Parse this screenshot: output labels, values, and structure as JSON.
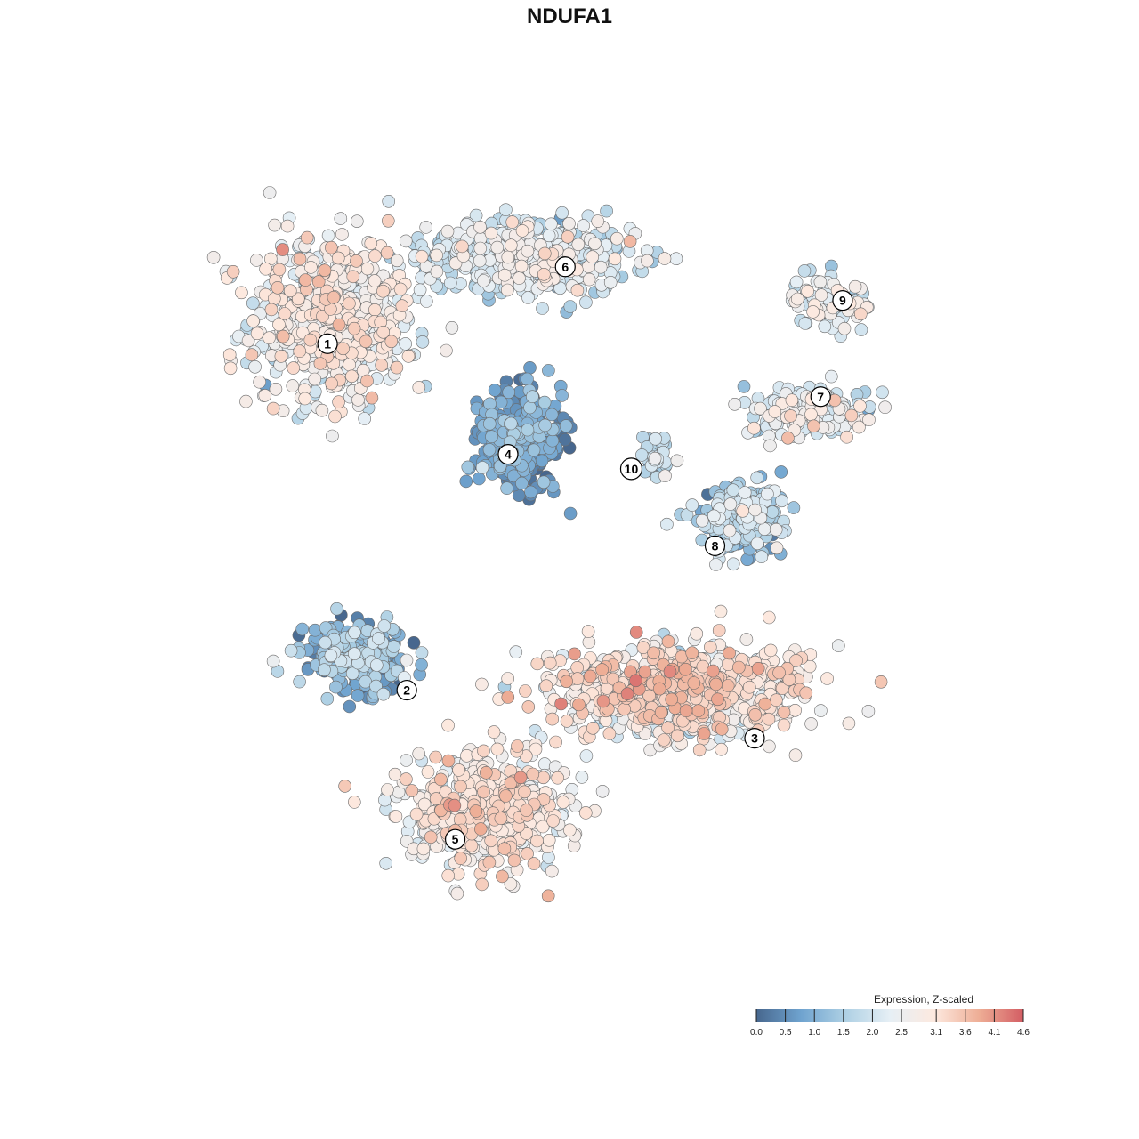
{
  "chart_data": {
    "type": "scatter",
    "title": "NDUFA1",
    "xlabel": "",
    "ylabel": "",
    "grid": false,
    "legend_placement": "bottom-right",
    "colorbar": {
      "title": "Expression, Z-scaled",
      "range": [
        0.0,
        4.6
      ],
      "ticks": [
        "0.0",
        "0.5",
        "1.0",
        "1.5",
        "2.0",
        "2.5",
        "3.1",
        "3.6",
        "4.1",
        "4.6"
      ],
      "tick_values": [
        0.0,
        0.5,
        1.0,
        1.5,
        2.0,
        2.5,
        3.1,
        3.6,
        4.1,
        4.6
      ],
      "colors": [
        "#47678e",
        "#6fa3cf",
        "#aed0e4",
        "#e6eff5",
        "#fde9df",
        "#eeae96",
        "#d35d63"
      ]
    },
    "clusters": [
      {
        "label": "1",
        "x": -5.8,
        "y": 5.5,
        "spread": [
          1.7,
          1.6
        ],
        "n": 620,
        "mean_expr": 2.6,
        "sd_expr": 0.45
      },
      {
        "label": "6",
        "x": -1.3,
        "y": 6.8,
        "spread": [
          2.1,
          0.7
        ],
        "n": 520,
        "mean_expr": 2.1,
        "sd_expr": 0.5
      },
      {
        "label": "9",
        "x": 5.5,
        "y": 5.9,
        "spread": [
          0.9,
          0.45
        ],
        "n": 90,
        "mean_expr": 2.2,
        "sd_expr": 0.5
      },
      {
        "label": "7",
        "x": 5.0,
        "y": 3.6,
        "spread": [
          1.3,
          0.5
        ],
        "n": 190,
        "mean_expr": 2.2,
        "sd_expr": 0.5
      },
      {
        "label": "4",
        "x": -1.5,
        "y": 3.0,
        "spread": [
          0.85,
          0.9
        ],
        "n": 430,
        "mean_expr": 0.6,
        "sd_expr": 0.4
      },
      {
        "label": "10",
        "x": 1.6,
        "y": 2.6,
        "spread": [
          0.3,
          0.35
        ],
        "n": 45,
        "mean_expr": 1.6,
        "sd_expr": 0.5
      },
      {
        "label": "8",
        "x": 3.5,
        "y": 1.4,
        "spread": [
          0.9,
          0.6
        ],
        "n": 210,
        "mean_expr": 1.5,
        "sd_expr": 0.55
      },
      {
        "label": "2",
        "x": -5.2,
        "y": -1.5,
        "spread": [
          1.0,
          0.6
        ],
        "n": 300,
        "mean_expr": 1.0,
        "sd_expr": 0.55
      },
      {
        "label": "3",
        "x": 2.0,
        "y": -2.2,
        "spread": [
          2.6,
          0.9
        ],
        "n": 720,
        "mean_expr": 2.9,
        "sd_expr": 0.5
      },
      {
        "label": "5",
        "x": -2.3,
        "y": -4.7,
        "spread": [
          1.7,
          1.0
        ],
        "n": 560,
        "mean_expr": 2.8,
        "sd_expr": 0.45
      }
    ],
    "label_positions": {
      "1": [
        -5.9,
        5.0
      ],
      "6": [
        -0.5,
        6.6
      ],
      "9": [
        5.8,
        5.9
      ],
      "7": [
        5.3,
        3.9
      ],
      "4": [
        -1.8,
        2.7
      ],
      "10": [
        1.0,
        2.4
      ],
      "8": [
        2.9,
        0.8
      ],
      "2": [
        -4.1,
        -2.2
      ],
      "3": [
        3.8,
        -3.2
      ],
      "5": [
        -3.0,
        -5.3
      ]
    },
    "xlim": [
      -9.5,
      9.5
    ],
    "ylim": [
      -8.2,
      9.0
    ]
  }
}
